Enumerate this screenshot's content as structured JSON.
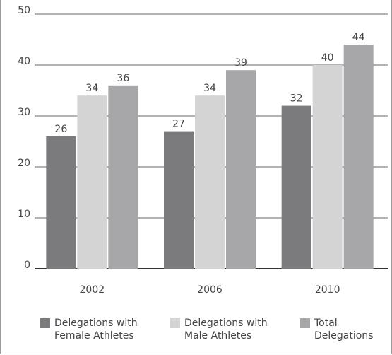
{
  "chart_data": {
    "type": "bar",
    "categories": [
      "2002",
      "2006",
      "2010"
    ],
    "series": [
      {
        "name": "Delegations with Female Athletes",
        "color": "#7b7b7d",
        "values": [
          26,
          27,
          32
        ]
      },
      {
        "name": "Delegations with Male Athletes",
        "color": "#d4d4d4",
        "values": [
          34,
          34,
          40
        ]
      },
      {
        "name": "Total Delegations",
        "color": "#a7a7a9",
        "values": [
          36,
          39,
          44
        ]
      }
    ],
    "ylim": [
      0,
      50
    ],
    "yticks": [
      0,
      10,
      20,
      30,
      40,
      50
    ],
    "grid": true,
    "legend": "bottom"
  }
}
